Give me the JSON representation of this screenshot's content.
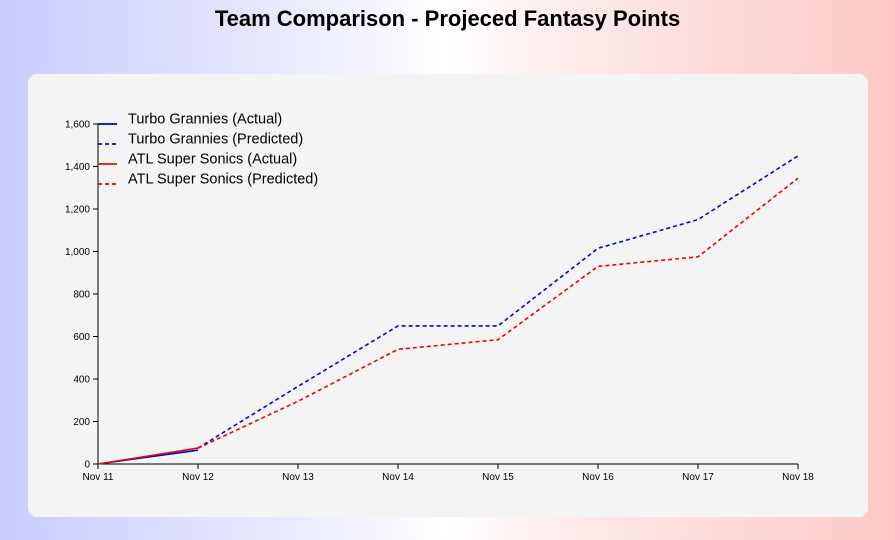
{
  "title": "Team Comparison - Projeced Fantasy Points",
  "chart_data": {
    "type": "line",
    "x": [
      "Nov 11",
      "Nov 12",
      "Nov 13",
      "Nov 14",
      "Nov 15",
      "Nov 16",
      "Nov 17",
      "Nov 18"
    ],
    "ylim": [
      0,
      1600
    ],
    "yticks": [
      0,
      200,
      400,
      600,
      800,
      1000,
      1200,
      1400,
      1600
    ],
    "ytick_labels": [
      "0",
      "200",
      "400",
      "600",
      "800",
      "1,000",
      "1,200",
      "1,400",
      "1,600"
    ],
    "grid": false,
    "legend": "top-left",
    "series": [
      {
        "name": "Turbo Grannies (Actual)",
        "color": "#0000cc",
        "style": "solid",
        "values": [
          0,
          65,
          null,
          null,
          null,
          null,
          null,
          null
        ]
      },
      {
        "name": "Turbo Grannies (Predicted)",
        "color": "#0000ee",
        "style": "dashed",
        "values": [
          null,
          75,
          365,
          650,
          650,
          1015,
          1150,
          1450
        ]
      },
      {
        "name": "ATL Super Sonics (Actual)",
        "color": "#dd1111",
        "style": "solid",
        "values": [
          0,
          75,
          null,
          null,
          null,
          null,
          null,
          null
        ]
      },
      {
        "name": "ATL Super Sonics (Predicted)",
        "color": "#ee0000",
        "style": "dashed",
        "values": [
          null,
          75,
          295,
          540,
          585,
          930,
          975,
          1345
        ]
      }
    ]
  }
}
